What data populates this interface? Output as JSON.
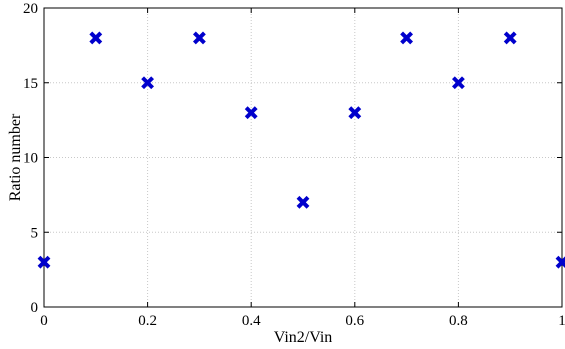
{
  "chart_data": {
    "type": "scatter",
    "title": "",
    "xlabel": "Vin2/Vin",
    "ylabel": "Ratio number",
    "xlim": [
      0,
      1
    ],
    "ylim": [
      0,
      20
    ],
    "xticks": [
      "0",
      "0.2",
      "0.4",
      "0.6",
      "0.8",
      "1"
    ],
    "yticks": [
      "0",
      "5",
      "10",
      "15",
      "20"
    ],
    "grid": true,
    "marker": "x",
    "series": [
      {
        "color": "#0000cc",
        "x": [
          0,
          0.1,
          0.2,
          0.3,
          0.4,
          0.5,
          0.6,
          0.7,
          0.8,
          0.9,
          1.0
        ],
        "y": [
          3,
          18,
          15,
          18,
          13,
          7,
          13,
          18,
          15,
          18,
          3
        ]
      }
    ]
  }
}
